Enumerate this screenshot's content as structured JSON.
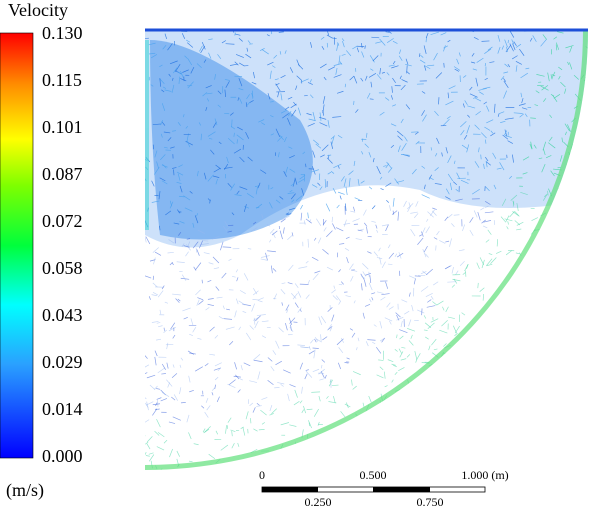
{
  "legend": {
    "title": "Velocity",
    "ticks": [
      "0.130",
      "0.115",
      "0.101",
      "0.087",
      "0.072",
      "0.058",
      "0.043",
      "0.029",
      "0.014",
      "0.000"
    ],
    "unit": "(m/s)"
  },
  "scale_bar": {
    "top_labels": [
      "0",
      "0.500",
      "1.000 (m)"
    ],
    "bottom_labels": [
      "0.250",
      "0.750"
    ]
  }
}
